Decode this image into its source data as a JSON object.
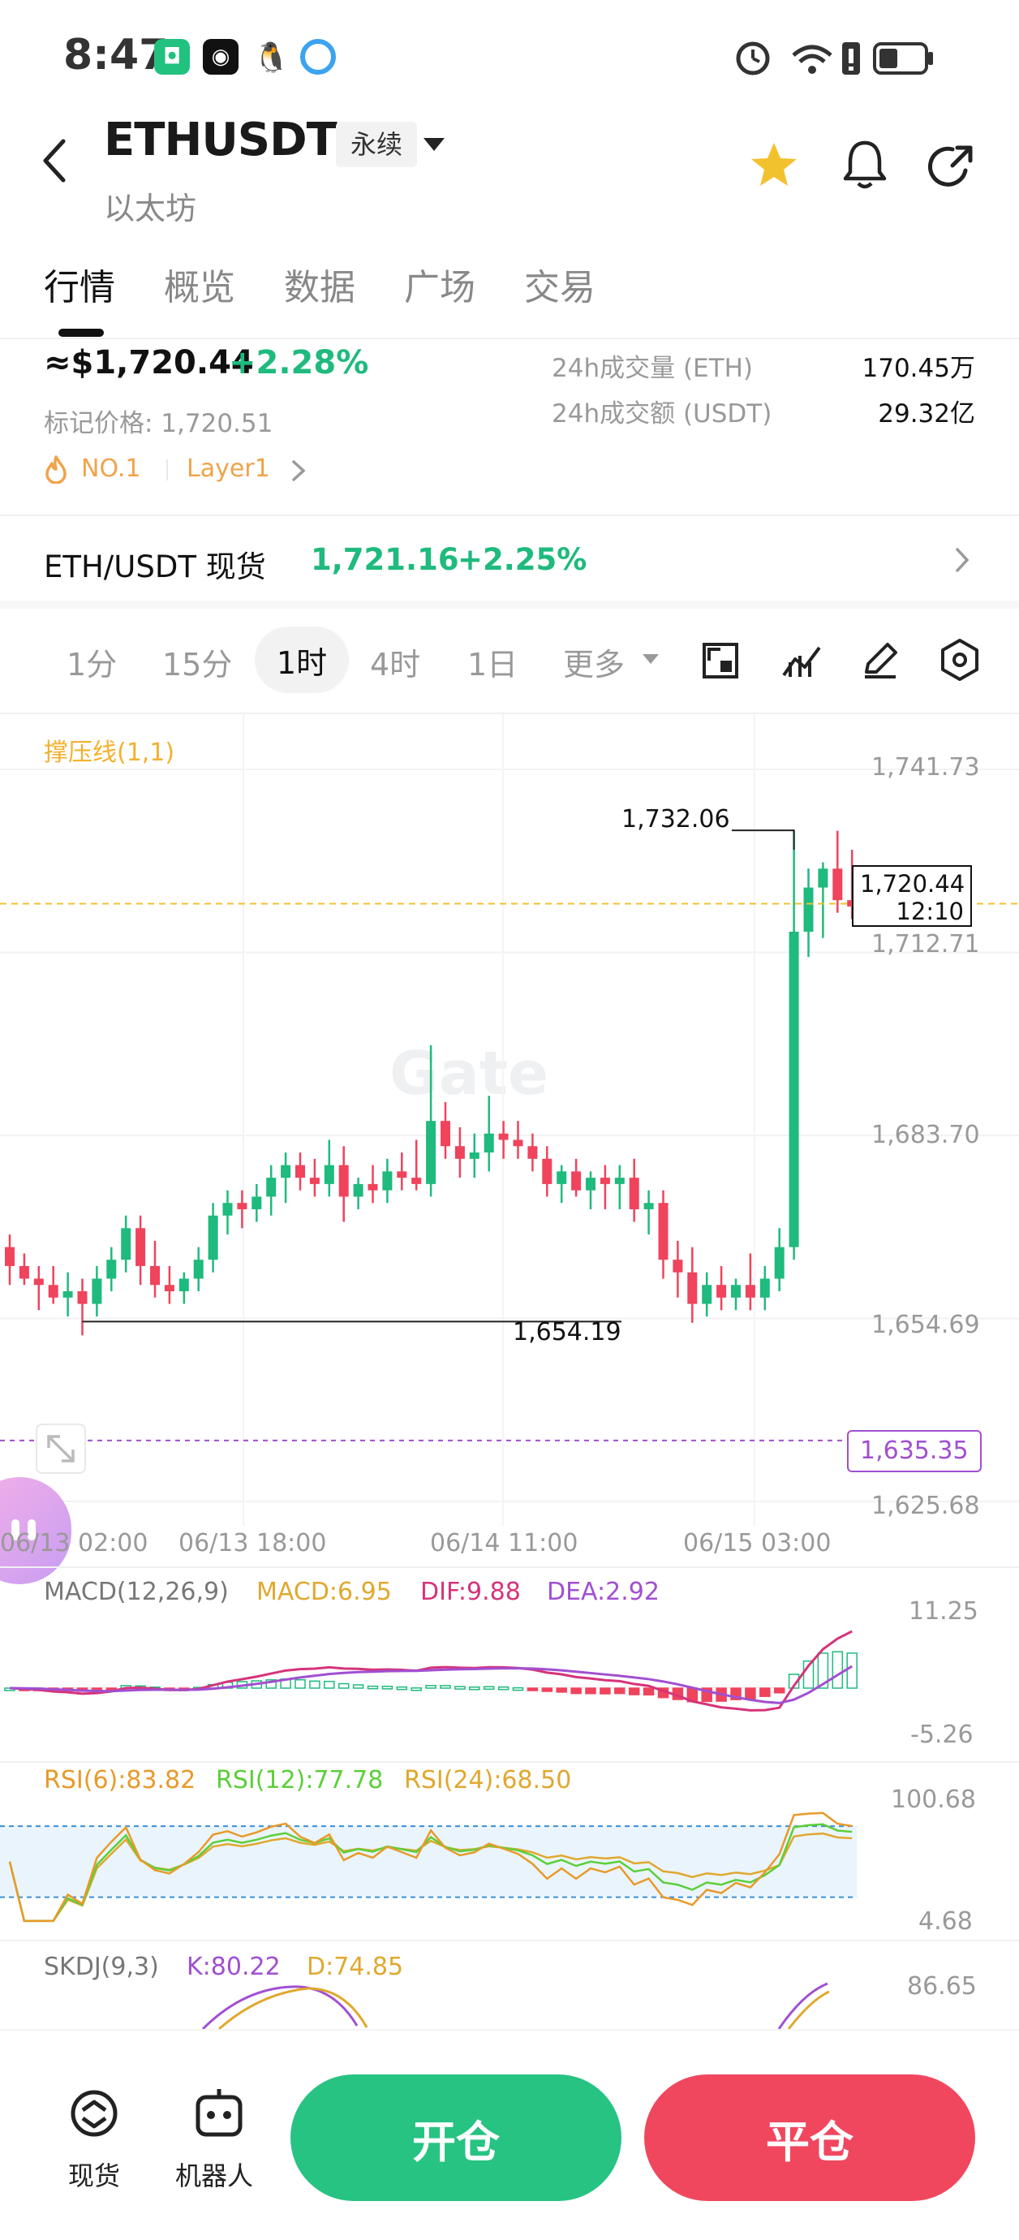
{
  "status_bar": {
    "time": "8:47"
  },
  "header": {
    "symbol": "ETHUSDT",
    "contract_type": "永续",
    "name": "以太坊"
  },
  "tabs": [
    "行情",
    "概览",
    "数据",
    "广场",
    "交易"
  ],
  "price_info": {
    "price": "≈$1,720.44",
    "change": "+2.28%",
    "mark_price": "标记价格: 1,720.51",
    "volume_label": "24h成交量 (ETH)",
    "volume_value": "170.45万",
    "turnover_label": "24h成交额 (USDT)",
    "turnover_value": "29.32亿",
    "rank_tag": "NO.1",
    "category_tag": "Layer1"
  },
  "spot": {
    "label": "ETH/USDT 现货",
    "price": "1,721.16",
    "change": "+2.25%"
  },
  "timeframes": [
    "1分",
    "15分",
    "1时",
    "4时",
    "1日",
    "更多"
  ],
  "main_chart": {
    "indicator_label": "撑压线(1,1)",
    "y_labels": [
      "1,741.73",
      "1,712.71",
      "1,683.70",
      "1,654.69",
      "1,625.68"
    ],
    "high_label": "1,732.06",
    "low_label": "1,654.19",
    "current_price": "1,720.44",
    "countdown": "12:10",
    "support_price": "1,635.35",
    "watermark": "Gate",
    "x_labels": [
      "06/13 02:00",
      "06/13 18:00",
      "06/14 11:00",
      "06/15 03:00"
    ]
  },
  "macd": {
    "label": "MACD(12,26,9)",
    "macd": "MACD:6.95",
    "dif": "DIF:9.88",
    "dea": "DEA:2.92",
    "y_top": "11.25",
    "y_bottom": "-5.26"
  },
  "rsi": {
    "r6": "RSI(6):83.82",
    "r12": "RSI(12):77.78",
    "r24": "RSI(24):68.50",
    "y_top": "100.68",
    "y_bottom": "4.68"
  },
  "skdj": {
    "label": "SKDJ(9,3)",
    "k": "K:80.22",
    "d": "D:74.85",
    "y_top": "86.65"
  },
  "bottom": {
    "spot_label": "现货",
    "bot_label": "机器人",
    "open_label": "开仓",
    "close_label": "平仓"
  },
  "colors": {
    "up": "#1fba7d",
    "down": "#f0435c",
    "accent_yellow": "#f2c12e",
    "dif": "#d6337a",
    "dea": "#a14fd1",
    "macd": "#e0a82e"
  },
  "candles": [
    [
      1666,
      1668,
      1660,
      1663
    ],
    [
      1663,
      1665,
      1660,
      1661
    ],
    [
      1661,
      1663,
      1656,
      1660
    ],
    [
      1660,
      1663,
      1657,
      1658
    ],
    [
      1658,
      1662,
      1655,
      1659
    ],
    [
      1659,
      1661,
      1652,
      1657
    ],
    [
      1657,
      1663,
      1655,
      1661
    ],
    [
      1661,
      1666,
      1659,
      1664
    ],
    [
      1664,
      1671,
      1662,
      1669
    ],
    [
      1669,
      1671,
      1660,
      1663
    ],
    [
      1663,
      1667,
      1658,
      1660
    ],
    [
      1660,
      1663,
      1657,
      1659
    ],
    [
      1659,
      1662,
      1657,
      1661
    ],
    [
      1661,
      1666,
      1659,
      1664
    ],
    [
      1664,
      1673,
      1662,
      1671
    ],
    [
      1671,
      1675,
      1668,
      1673
    ],
    [
      1673,
      1675,
      1669,
      1672
    ],
    [
      1672,
      1676,
      1670,
      1674
    ],
    [
      1674,
      1679,
      1671,
      1677
    ],
    [
      1677,
      1681,
      1673,
      1679
    ],
    [
      1679,
      1681,
      1675,
      1677
    ],
    [
      1677,
      1680,
      1674,
      1676
    ],
    [
      1676,
      1683,
      1674,
      1679
    ],
    [
      1679,
      1682,
      1670,
      1674
    ],
    [
      1674,
      1677,
      1672,
      1676
    ],
    [
      1676,
      1679,
      1673,
      1675
    ],
    [
      1675,
      1680,
      1673,
      1678
    ],
    [
      1678,
      1681,
      1675,
      1677
    ],
    [
      1677,
      1683,
      1675,
      1676
    ],
    [
      1676,
      1698,
      1674,
      1686
    ],
    [
      1686,
      1689,
      1680,
      1682
    ],
    [
      1682,
      1685,
      1677,
      1680
    ],
    [
      1680,
      1684,
      1677,
      1681
    ],
    [
      1681,
      1690,
      1678,
      1684
    ],
    [
      1684,
      1686,
      1680,
      1683
    ],
    [
      1683,
      1686,
      1680,
      1682
    ],
    [
      1682,
      1684,
      1678,
      1680
    ],
    [
      1680,
      1682,
      1674,
      1676
    ],
    [
      1676,
      1679,
      1673,
      1678
    ],
    [
      1678,
      1680,
      1674,
      1675
    ],
    [
      1675,
      1678,
      1672,
      1677
    ],
    [
      1677,
      1679,
      1672,
      1676
    ],
    [
      1676,
      1679,
      1672,
      1677
    ],
    [
      1677,
      1680,
      1670,
      1672
    ],
    [
      1672,
      1675,
      1668,
      1673
    ],
    [
      1673,
      1675,
      1661,
      1664
    ],
    [
      1664,
      1667,
      1658,
      1662
    ],
    [
      1662,
      1666,
      1654,
      1657
    ],
    [
      1657,
      1662,
      1655,
      1660
    ],
    [
      1660,
      1663,
      1656,
      1658
    ],
    [
      1658,
      1661,
      1656,
      1660
    ],
    [
      1660,
      1665,
      1656,
      1658
    ],
    [
      1658,
      1663,
      1656,
      1661
    ],
    [
      1661,
      1669,
      1659,
      1666
    ],
    [
      1666,
      1732,
      1664,
      1716
    ],
    [
      1716,
      1726,
      1712,
      1723
    ],
    [
      1723,
      1727,
      1715,
      1726
    ],
    [
      1726,
      1732,
      1719,
      1721
    ],
    [
      1721,
      1729,
      1718,
      1720
    ]
  ]
}
